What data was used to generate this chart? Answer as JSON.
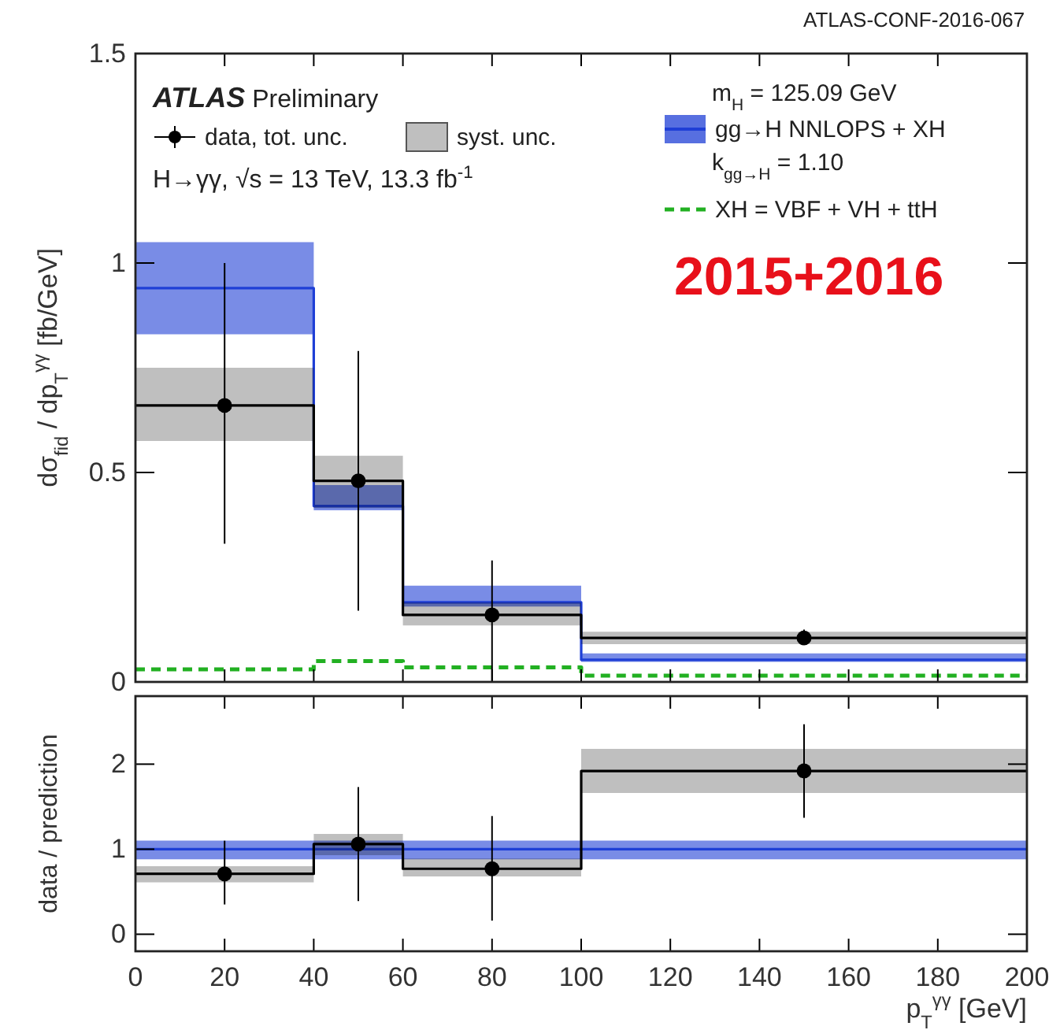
{
  "chart_data": [
    {
      "type": "step",
      "ylabel": "dσ$_{fid}$ / dp$_{T}$$^{γγ}$ [fb/GeV]",
      "xlim": [
        0,
        200
      ],
      "xticks": [
        0,
        20,
        40,
        60,
        80,
        100,
        120,
        140,
        160,
        180,
        200
      ],
      "ylim": [
        0,
        1.5
      ],
      "yticks": [
        0,
        0.5,
        1,
        1.5
      ],
      "tick_labels": "y",
      "legend": "top",
      "annotations": [
        "ATLAS Preliminary",
        "H→γγ, √s = 13 TeV,  13.3 fb$^{-1}$",
        "m$_{H}$ = 125.09 GeV",
        "k$_{gg→H}$ = 1.10",
        "2015+2016",
        "ATLAS-CONF-2016-067"
      ],
      "series": [
        {
          "name": "gg→H NNLOPS + XH",
          "color": "#1f3fd6",
          "x": [
            0,
            40,
            60,
            100,
            200
          ],
          "values": [
            0.94,
            0.42,
            0.19,
            0.053,
            0.053
          ],
          "lower": [
            0.83,
            0.41,
            0.18,
            0.048,
            0.048
          ],
          "upper": [
            1.05,
            0.47,
            0.23,
            0.068,
            0.068
          ]
        },
        {
          "name": "syst. unc.",
          "color": "#000000",
          "x": [
            0,
            40,
            60,
            100,
            200
          ],
          "values": [
            0.66,
            0.48,
            0.16,
            0.105,
            0.105
          ],
          "lower": [
            0.575,
            0.415,
            0.135,
            0.09,
            0.09
          ],
          "upper": [
            0.75,
            0.54,
            0.19,
            0.12,
            0.12
          ]
        },
        {
          "name": "XH = VBF + VH + ttH",
          "color": "#22b022",
          "line_style": "dashed",
          "x": [
            0,
            40,
            60,
            100,
            200
          ],
          "values": [
            0.03,
            0.05,
            0.035,
            0.015,
            0.015
          ]
        },
        {
          "name": "data, tot. unc.",
          "type": "scatter",
          "color": "#000000",
          "marker": "circle",
          "x": [
            20,
            50,
            80,
            150
          ],
          "values": [
            0.66,
            0.48,
            0.16,
            0.105
          ],
          "errors": [
            [
              0.33,
              1.0
            ],
            [
              0.17,
              0.79
            ],
            [
              0.0,
              0.29
            ],
            [
              0.09,
              0.125
            ]
          ]
        }
      ]
    },
    {
      "type": "step",
      "xlabel": "p$_{T}$$^{γγ}$ [GeV]",
      "ylabel": "data / prediction",
      "xlim": [
        0,
        200
      ],
      "xticks": [
        0,
        20,
        40,
        60,
        80,
        100,
        120,
        140,
        160,
        180,
        200
      ],
      "ylim": [
        -0.2,
        2.8
      ],
      "yticks": [
        0,
        1,
        2
      ],
      "series": [
        {
          "color": "#1f3fd6",
          "x": [
            0,
            40,
            60,
            100,
            200
          ],
          "values": [
            1,
            1,
            1,
            1,
            1
          ],
          "lower": [
            0.88,
            0.88,
            0.88,
            0.88,
            0.88
          ],
          "upper": [
            1.1,
            1.1,
            1.1,
            1.1,
            1.1
          ]
        },
        {
          "color": "#000000",
          "x": [
            0,
            40,
            60,
            100,
            200
          ],
          "values": [
            0.71,
            1.06,
            0.77,
            1.92,
            1.92
          ],
          "lower": [
            0.61,
            0.93,
            0.68,
            1.66,
            1.66
          ],
          "upper": [
            0.8,
            1.18,
            0.89,
            2.18,
            2.18
          ]
        },
        {
          "type": "scatter",
          "color": "#000000",
          "marker": "circle",
          "x": [
            20,
            50,
            80,
            150
          ],
          "values": [
            0.71,
            1.06,
            0.77,
            1.92
          ],
          "errors": [
            [
              0.35,
              1.1
            ],
            [
              0.39,
              1.73
            ],
            [
              0.16,
              1.39
            ],
            [
              1.37,
              2.47
            ]
          ]
        }
      ]
    }
  ]
}
